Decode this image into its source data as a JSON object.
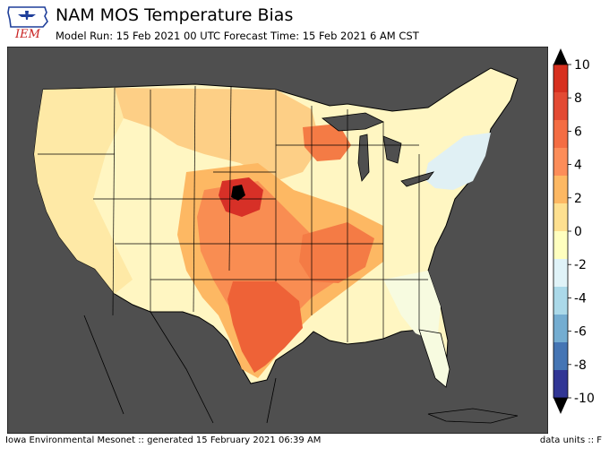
{
  "header": {
    "title": "NAM MOS Temperature Bias",
    "subtitle": "Model Run: 15 Feb 2021 00 UTC Forecast Time: 15 Feb 2021 6 AM CST"
  },
  "logo": {
    "text": "IEM",
    "icon": "iowa-state-logo"
  },
  "colorbar": {
    "ticks": [
      "10",
      "8",
      "6",
      "4",
      "2",
      "0",
      "-2",
      "-4",
      "-6",
      "-8",
      "-10"
    ],
    "colors": [
      "#d7301f",
      "#e34a33",
      "#f46d43",
      "#fc8d59",
      "#fdb863",
      "#fee090",
      "#ffffbf",
      "#e0f3f8",
      "#abd9e9",
      "#74add1",
      "#4575b4",
      "#313695"
    ]
  },
  "footer": {
    "left": "Iowa Environmental Mesonet :: generated 15 February 2021 06:39 AM",
    "right": "data units :: F"
  }
}
